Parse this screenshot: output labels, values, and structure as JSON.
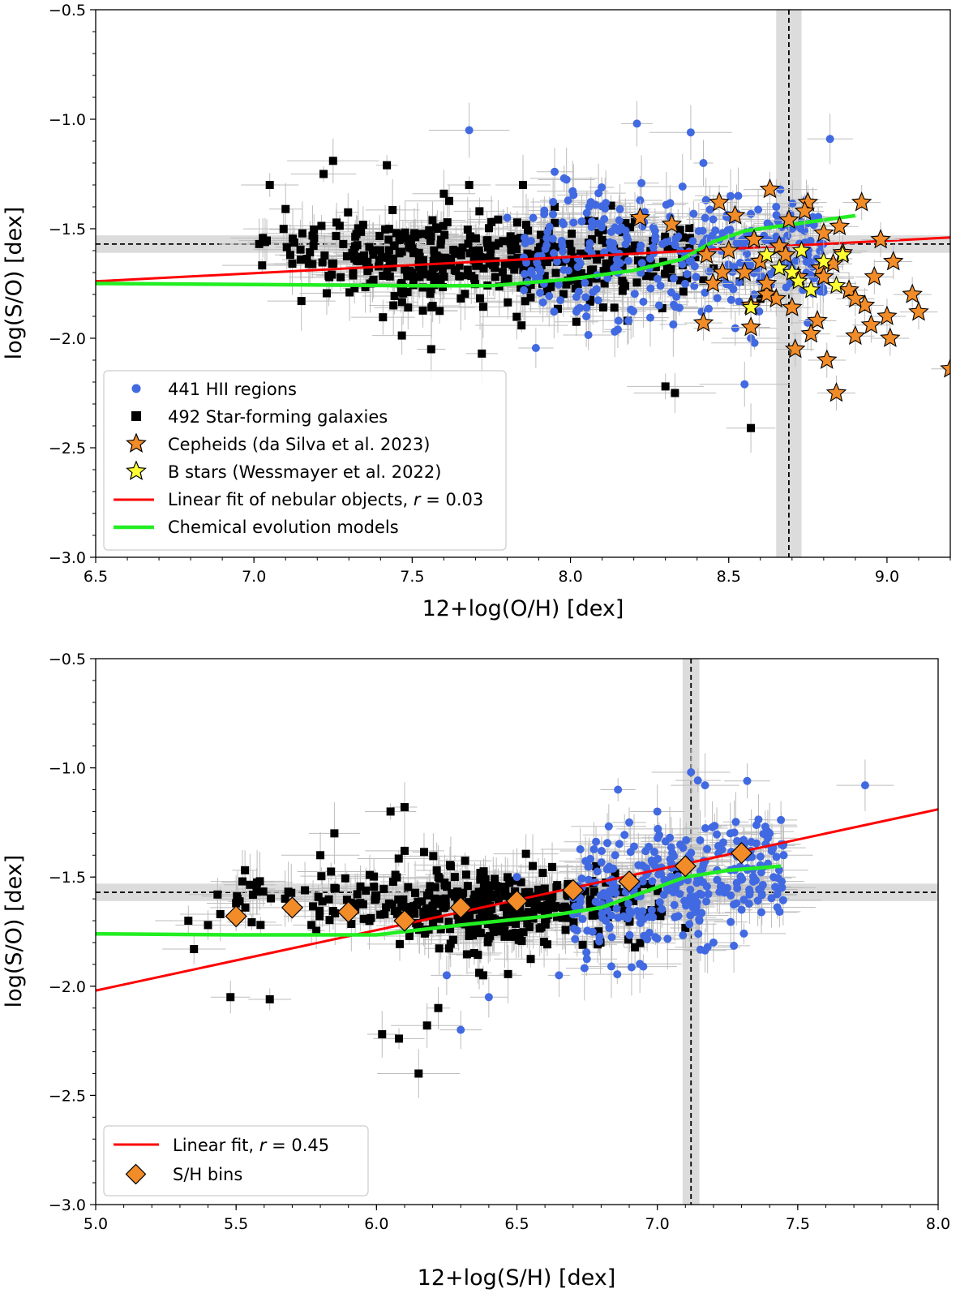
{
  "chart_data": [
    {
      "id": "top",
      "type": "scatter",
      "xlabel": "12+log(O/H) [dex]",
      "ylabel": "log(S/O) [dex]",
      "xlim": [
        6.5,
        9.2
      ],
      "ylim": [
        -3.0,
        -0.5
      ],
      "xticks": [
        6.5,
        7.0,
        7.5,
        8.0,
        8.5,
        9.0
      ],
      "xtick_labels": [
        "6.5",
        "7.0",
        "7.5",
        "8.0",
        "8.5",
        "9.0"
      ],
      "yticks": [
        -3.0,
        -2.5,
        -2.0,
        -1.5,
        -1.0,
        -0.5
      ],
      "ytick_labels": [
        "−3.0",
        "−2.5",
        "−2.0",
        "−1.5",
        "−1.0",
        "−0.5"
      ],
      "reference": {
        "x": 8.69,
        "x_band": [
          8.65,
          8.73
        ],
        "y": -1.57,
        "y_band": [
          -1.61,
          -1.53
        ]
      },
      "legend": {
        "hii": "441 HII regions",
        "sf": "492 Star-forming galaxies",
        "cepheids": "Cepheids (da Silva et al. 2023)",
        "bstars": "B stars (Wessmayer et al. 2022)",
        "fit_prefix": "Linear fit of nebular objects, ",
        "fit_r": "r",
        "fit_suffix": " = 0.03",
        "model": "Chemical evolution models"
      },
      "fit": {
        "x": [
          6.5,
          9.2
        ],
        "y": [
          -1.74,
          -1.54
        ]
      },
      "model": {
        "x": [
          6.5,
          7.0,
          7.5,
          7.75,
          8.0,
          8.2,
          8.35,
          8.45,
          8.55,
          8.7,
          8.9
        ],
        "y": [
          -1.75,
          -1.755,
          -1.76,
          -1.76,
          -1.73,
          -1.69,
          -1.64,
          -1.56,
          -1.51,
          -1.48,
          -1.44
        ]
      },
      "sf_galaxies": {
        "x": [
          7.05,
          7.1,
          7.15,
          7.25,
          7.42,
          7.56,
          7.72,
          7.22,
          7.45,
          7.58,
          8.3,
          8.57,
          7.6,
          7.68,
          7.85,
          7.95,
          8.12,
          8.18,
          8.33,
          8.6
        ],
        "y": [
          -1.3,
          -1.41,
          -1.83,
          -1.19,
          -1.21,
          -2.05,
          -2.07,
          -1.25,
          -1.52,
          -1.5,
          -2.22,
          -2.41,
          -1.34,
          -1.3,
          -1.3,
          -1.4,
          -1.7,
          -1.92,
          -2.25,
          -1.82
        ]
      },
      "hii_regions": {
        "x": [
          7.68,
          7.98,
          8.21,
          8.38,
          8.82,
          8.42,
          8.53,
          8.65,
          8.7,
          8.79,
          8.55,
          7.95,
          8.05,
          8.14,
          8.28,
          8.47,
          8.58,
          8.75,
          8.57,
          7.8
        ],
        "y": [
          -1.05,
          -1.27,
          -1.02,
          -1.06,
          -1.09,
          -1.2,
          -1.35,
          -1.4,
          -1.5,
          -1.75,
          -2.21,
          -1.24,
          -1.9,
          -1.97,
          -1.85,
          -1.55,
          -1.8,
          -1.62,
          -2.0,
          -1.45
        ]
      },
      "cepheids": {
        "x": [
          8.22,
          8.32,
          8.43,
          8.47,
          8.52,
          8.58,
          8.63,
          8.69,
          8.75,
          8.8,
          8.86,
          8.92,
          8.98,
          9.02,
          9.08,
          9.1,
          9.2,
          8.45,
          8.5,
          8.55,
          8.6,
          8.65,
          8.72,
          8.78,
          8.83,
          8.88,
          8.93,
          8.96,
          9.0,
          8.42,
          8.48,
          8.57,
          8.62,
          8.66,
          8.71,
          8.76,
          8.81,
          8.84,
          8.9,
          8.95,
          9.01,
          8.7,
          8.74,
          8.79,
          8.85,
          8.57,
          8.62,
          8.68,
          8.8,
          8.9
        ],
        "y": [
          -1.45,
          -1.48,
          -1.62,
          -1.38,
          -1.44,
          -1.55,
          -1.32,
          -1.46,
          -1.38,
          -1.52,
          -1.61,
          -1.38,
          -1.55,
          -1.65,
          -1.8,
          -1.88,
          -2.14,
          -1.75,
          -1.6,
          -1.7,
          -1.65,
          -1.82,
          -1.72,
          -1.92,
          -1.66,
          -1.78,
          -1.85,
          -1.72,
          -1.9,
          -1.93,
          -1.7,
          -1.95,
          -1.8,
          -1.58,
          -2.05,
          -1.98,
          -2.1,
          -2.25,
          -1.99,
          -1.94,
          -2.0,
          -1.86,
          -1.42,
          -1.68,
          -1.49,
          -1.85,
          -1.75,
          -1.62,
          -1.72,
          -1.82
        ]
      },
      "bstars": {
        "x": [
          8.57,
          8.62,
          8.66,
          8.7,
          8.73,
          8.76,
          8.8,
          8.84,
          8.86,
          8.72
        ],
        "y": [
          -1.86,
          -1.62,
          -1.68,
          -1.7,
          -1.6,
          -1.78,
          -1.65,
          -1.76,
          -1.62,
          -1.74
        ]
      }
    },
    {
      "id": "bottom",
      "type": "scatter",
      "xlabel": "12+log(S/H) [dex]",
      "ylabel": "log(S/O) [dex]",
      "xlim": [
        5.0,
        8.0
      ],
      "ylim": [
        -3.0,
        -0.5
      ],
      "xticks": [
        5.0,
        5.5,
        6.0,
        6.5,
        7.0,
        7.5,
        8.0
      ],
      "xtick_labels": [
        "5.0",
        "5.5",
        "6.0",
        "6.5",
        "7.0",
        "7.5",
        "8.0"
      ],
      "yticks": [
        -3.0,
        -2.5,
        -2.0,
        -1.5,
        -1.0,
        -0.5
      ],
      "ytick_labels": [
        "−3.0",
        "−2.5",
        "−2.0",
        "−1.5",
        "−1.0",
        "−0.5"
      ],
      "reference": {
        "x": 7.12,
        "x_band": [
          7.09,
          7.15
        ],
        "y": -1.57,
        "y_band": [
          -1.61,
          -1.53
        ]
      },
      "legend": {
        "fit_prefix": "Linear fit, ",
        "fit_r": "r",
        "fit_suffix": " = 0.45",
        "bins": "S/H bins"
      },
      "fit": {
        "x": [
          5.0,
          8.0
        ],
        "y": [
          -2.02,
          -1.19
        ]
      },
      "model": {
        "x": [
          5.0,
          5.5,
          6.0,
          6.3,
          6.6,
          6.8,
          6.95,
          7.1,
          7.25,
          7.44
        ],
        "y": [
          -1.76,
          -1.765,
          -1.765,
          -1.72,
          -1.68,
          -1.64,
          -1.57,
          -1.5,
          -1.47,
          -1.45
        ]
      },
      "bins": {
        "x": [
          5.5,
          5.7,
          5.9,
          6.1,
          6.3,
          6.5,
          6.7,
          6.9,
          7.1,
          7.3
        ],
        "y": [
          -1.68,
          -1.64,
          -1.66,
          -1.7,
          -1.64,
          -1.61,
          -1.56,
          -1.52,
          -1.45,
          -1.39
        ]
      },
      "sf_galaxies": {
        "x": [
          5.33,
          5.35,
          5.48,
          5.62,
          5.85,
          6.1,
          6.02,
          6.15,
          5.8,
          6.08,
          6.18,
          6.22,
          5.85,
          6.38,
          6.05,
          6.1,
          5.5,
          5.4
        ],
        "y": [
          -1.7,
          -1.83,
          -2.05,
          -2.06,
          -1.3,
          -1.18,
          -2.22,
          -2.4,
          -1.4,
          -2.24,
          -2.18,
          -2.1,
          -1.55,
          -1.95,
          -1.2,
          -1.38,
          -1.62,
          -1.72
        ]
      },
      "hii_regions": {
        "x": [
          6.5,
          6.3,
          7.12,
          7.17,
          7.74,
          7.32,
          7.4,
          7.26,
          7.2,
          6.95,
          7.0,
          6.86,
          6.85,
          6.4,
          6.25,
          7.15,
          7.3,
          7.45,
          6.65,
          6.9
        ],
        "y": [
          -1.5,
          -2.2,
          -1.02,
          -1.08,
          -1.08,
          -1.06,
          -1.3,
          -1.3,
          -1.8,
          -1.91,
          -1.2,
          -1.1,
          -1.4,
          -2.05,
          -1.95,
          -1.7,
          -1.65,
          -1.4,
          -1.95,
          -1.25
        ]
      }
    }
  ]
}
